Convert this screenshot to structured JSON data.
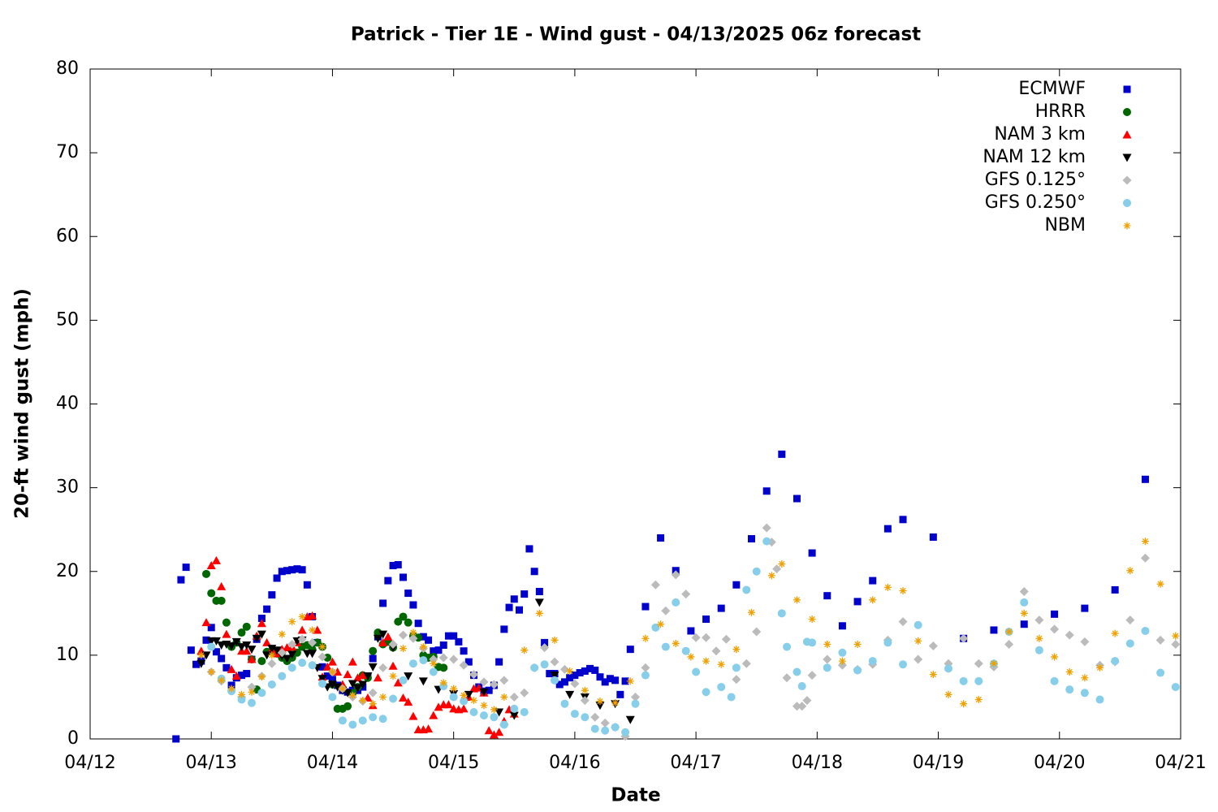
{
  "chart_data": {
    "type": "scatter",
    "title": "Patrick - Tier 1E - Wind gust - 04/13/2025 06z forecast",
    "x_label": "Date",
    "y_label": "20-ft wind gust (mph)",
    "xlim": [
      0,
      216
    ],
    "xticks": [
      {
        "value": 0,
        "label": "04/12"
      },
      {
        "value": 24,
        "label": "04/13"
      },
      {
        "value": 48,
        "label": "04/14"
      },
      {
        "value": 72,
        "label": "04/15"
      },
      {
        "value": 96,
        "label": "04/16"
      },
      {
        "value": 120,
        "label": "04/17"
      },
      {
        "value": 144,
        "label": "04/18"
      },
      {
        "value": 168,
        "label": "04/19"
      },
      {
        "value": 192,
        "label": "04/20"
      },
      {
        "value": 216,
        "label": "04/21"
      }
    ],
    "ylim": [
      0,
      80
    ],
    "yticks": [
      0,
      10,
      20,
      30,
      40,
      50,
      60,
      70,
      80
    ],
    "legend": "top-right",
    "series": [
      {
        "name": "ECMWF",
        "color": "#0000cc",
        "marker": "square",
        "x": [
          17,
          18,
          19,
          20,
          21,
          22,
          23,
          24,
          25,
          26,
          27,
          28,
          29,
          30,
          31,
          32,
          33,
          34,
          35,
          36,
          37,
          38,
          39,
          40,
          41,
          42,
          43,
          44,
          45,
          46,
          47,
          48,
          49,
          50,
          51,
          52,
          53,
          54,
          55,
          56,
          57,
          58,
          59,
          60,
          61,
          62,
          63,
          64,
          65,
          66,
          67,
          68,
          69,
          70,
          71,
          72,
          73,
          74,
          75,
          76,
          77,
          78,
          79,
          80,
          81,
          82,
          83,
          84,
          85,
          86,
          87,
          88,
          89,
          90,
          91,
          92,
          93,
          94,
          95,
          96,
          97,
          98,
          99,
          100,
          101,
          102,
          103,
          104,
          105,
          106,
          107,
          110,
          113,
          116,
          119,
          122,
          125,
          128,
          131,
          134,
          137,
          140,
          143,
          146,
          149,
          152,
          155,
          158,
          161,
          167,
          173,
          179,
          185,
          191,
          197,
          203,
          209
        ],
        "values": [
          0,
          19,
          20.5,
          10.6,
          8.9,
          9.3,
          11.8,
          13.3,
          10.4,
          9.6,
          8.5,
          6.4,
          7.3,
          7.6,
          7.8,
          9.5,
          11.9,
          14.4,
          15.5,
          17.2,
          19.2,
          20,
          20.1,
          20.2,
          20.3,
          20.2,
          18.4,
          14.6,
          11.5,
          8.6,
          7.5,
          7.1,
          6.4,
          5.8,
          5.6,
          5.8,
          5.8,
          6.2,
          7.5,
          9.6,
          12.2,
          16.2,
          18.9,
          20.7,
          20.8,
          19.3,
          17.4,
          16,
          13.8,
          12.2,
          11.8,
          10.5,
          10.6,
          11.2,
          12.3,
          12.3,
          11.6,
          10.5,
          9.2,
          7.6,
          6.2,
          5.7,
          5.8,
          6.4,
          9.2,
          13.1,
          15.7,
          16.7,
          15.4,
          17.3,
          22.7,
          20,
          17.6,
          11.5,
          7.8,
          7.8,
          6.5,
          6.8,
          7.3,
          7.6,
          7.9,
          8.1,
          8.4,
          8.2,
          7.4,
          6.8,
          7.2,
          7,
          5.3,
          6.9,
          10.7,
          15.8,
          24,
          20.1,
          12.9,
          14.3,
          15.6,
          18.4,
          23.9,
          29.6,
          34,
          28.7,
          22.2,
          17.1,
          13.5,
          16.4,
          18.9,
          25.1,
          26.2,
          24.1,
          12,
          13,
          13.7,
          14.9,
          15.6,
          17.8,
          31
        ]
      },
      {
        "name": "HRRR",
        "color": "#006600",
        "marker": "circle",
        "x": [
          23,
          24,
          25,
          26,
          27,
          28,
          29,
          30,
          31,
          32,
          33,
          34,
          35,
          36,
          37,
          38,
          39,
          40,
          41,
          42,
          43,
          44,
          45,
          46,
          47,
          48,
          49,
          50,
          51,
          52,
          53,
          54,
          55,
          56,
          57,
          58,
          59,
          60,
          61,
          62,
          63,
          64,
          65,
          66,
          67,
          68,
          69,
          70
        ],
        "values": [
          19.7,
          17.4,
          16.5,
          16.5,
          13.9,
          11,
          11.5,
          12.7,
          13.4,
          9.5,
          5.9,
          9.3,
          10.4,
          10.5,
          10.2,
          9.7,
          9.3,
          9.7,
          10.3,
          11,
          11.2,
          10.7,
          11.5,
          11,
          9.7,
          6.5,
          3.6,
          3.6,
          3.9,
          5.5,
          6.2,
          7.6,
          7.3,
          10.5,
          12.7,
          11.3,
          11.6,
          10.9,
          14,
          14.6,
          13.9,
          12.3,
          12.1,
          10,
          9.7,
          9.8,
          8.6,
          8.5
        ]
      },
      {
        "name": "NAM 3 km",
        "color": "#ff0000",
        "marker": "triangle",
        "x": [
          22,
          23,
          24,
          25,
          26,
          27,
          28,
          29,
          30,
          31,
          32,
          33,
          34,
          35,
          36,
          37,
          38,
          39,
          40,
          41,
          42,
          43,
          44,
          45,
          46,
          47,
          48,
          49,
          50,
          51,
          52,
          53,
          54,
          55,
          56,
          57,
          58,
          59,
          60,
          61,
          62,
          63,
          64,
          65,
          66,
          67,
          68,
          69,
          70,
          71,
          72,
          73,
          74,
          75,
          76,
          77,
          78,
          79,
          80,
          81,
          82,
          83,
          84
        ],
        "values": [
          10.5,
          13.9,
          20.7,
          21.3,
          18.2,
          12.5,
          8.3,
          7.5,
          10.5,
          10.5,
          9.5,
          12.3,
          13.8,
          11.5,
          10.7,
          10.2,
          10.7,
          10.9,
          11,
          11.5,
          13,
          14.6,
          14.7,
          13,
          7.4,
          8.6,
          9.2,
          8,
          6.5,
          7.7,
          9.2,
          7.3,
          7.6,
          4.9,
          4,
          7.3,
          11.5,
          12.2,
          8.7,
          6.7,
          4.9,
          4.4,
          2.7,
          1.1,
          1.1,
          1.2,
          2.8,
          3.8,
          4.1,
          4.1,
          3.6,
          3.5,
          3.6,
          5,
          6,
          6.1,
          5.5,
          1,
          0.5,
          0.8,
          2.1,
          3.5,
          3
        ]
      },
      {
        "name": "NAM 12 km",
        "color": "#000000",
        "marker": "down-triangle",
        "x": [
          22,
          23,
          24,
          25,
          26,
          27,
          28,
          29,
          30,
          31,
          32,
          33,
          34,
          35,
          36,
          37,
          38,
          39,
          40,
          41,
          42,
          43,
          44,
          45,
          46,
          47,
          48,
          49,
          50,
          51,
          52,
          53,
          54,
          55,
          56,
          57,
          58,
          60,
          63,
          66,
          69,
          72,
          75,
          78,
          81,
          84,
          89,
          92,
          95,
          98,
          101,
          104,
          107
        ],
        "values": [
          9,
          10,
          11.7,
          11.7,
          11.2,
          11.3,
          11.1,
          11.6,
          11,
          11.2,
          10.7,
          12,
          12.5,
          10,
          10.8,
          10.6,
          9.9,
          9.6,
          10.1,
          11.7,
          11.8,
          10.2,
          10.2,
          8.5,
          7.2,
          6.2,
          6.5,
          6.2,
          5.8,
          5.5,
          6.6,
          6.1,
          6.5,
          7.5,
          8.6,
          12,
          12.5,
          10.9,
          7.5,
          6.9,
          5.9,
          5.4,
          5.3,
          5.6,
          3.2,
          2.8,
          16.3,
          7.6,
          5.3,
          5,
          4,
          4.2,
          2.3
        ]
      },
      {
        "name": "GFS 0.125°",
        "color": "#bbbbbb",
        "marker": "diamond",
        "x": [
          24,
          26,
          28,
          30,
          32,
          34,
          36,
          38,
          40,
          42,
          44,
          46,
          48,
          50,
          52,
          54,
          56,
          58,
          60,
          62,
          64,
          66,
          68,
          70,
          72,
          74,
          76,
          78,
          80,
          82,
          84,
          86,
          88,
          90,
          92,
          94,
          96,
          98,
          100,
          102,
          104,
          106,
          108,
          110,
          112,
          114,
          116,
          118,
          120,
          122,
          124,
          126,
          128,
          130,
          132,
          134,
          135,
          136,
          138,
          140,
          141,
          142,
          143,
          146,
          149,
          152,
          155,
          158,
          161,
          164,
          167,
          170,
          173,
          176,
          179,
          182,
          185,
          188,
          191,
          194,
          197,
          200,
          203,
          206,
          209,
          212,
          215
        ],
        "values": [
          8,
          6.9,
          5.8,
          5,
          6.2,
          7.5,
          9,
          10.3,
          11.3,
          11.9,
          11.5,
          9.8,
          8,
          6,
          5,
          4.5,
          5.5,
          8.5,
          11.3,
          12.4,
          12,
          10.8,
          9.5,
          9.7,
          9.5,
          8.8,
          7.7,
          6.8,
          6.5,
          7,
          5,
          5.5,
          8.5,
          10.9,
          9.2,
          8.3,
          6.6,
          4.6,
          2.6,
          1.9,
          1.4,
          0.3,
          5,
          8.5,
          18.4,
          15.3,
          19.6,
          17.3,
          12.1,
          12.1,
          10.5,
          11.9,
          7.1,
          9,
          12.8,
          25.2,
          23.5,
          20.3,
          7.3,
          3.9,
          3.9,
          4.6,
          7.6,
          9.5,
          8.8,
          8.3,
          8.9,
          11.8,
          14,
          9.5,
          11.1,
          9,
          12,
          9,
          8.6,
          11.3,
          17.6,
          14.2,
          13.1,
          12.4,
          11.6,
          8.8,
          9.2,
          14.2,
          21.6,
          11.8,
          11.3
        ]
      },
      {
        "name": "GFS 0.250°",
        "color": "#87ceeb",
        "marker": "circle",
        "x": [
          24,
          26,
          28,
          30,
          32,
          34,
          36,
          38,
          40,
          42,
          44,
          46,
          48,
          50,
          52,
          54,
          56,
          58,
          60,
          62,
          64,
          66,
          68,
          70,
          72,
          74,
          76,
          78,
          80,
          82,
          84,
          86,
          88,
          90,
          92,
          94,
          96,
          98,
          100,
          102,
          104,
          106,
          108,
          110,
          112,
          114,
          116,
          118,
          120,
          122,
          125,
          127,
          128,
          130,
          132,
          134,
          137,
          138,
          140,
          141,
          142,
          143,
          146,
          149,
          152,
          155,
          158,
          161,
          164,
          170,
          173,
          176,
          179,
          182,
          185,
          188,
          191,
          194,
          197,
          200,
          203,
          206,
          209,
          212,
          215
        ],
        "values": [
          11,
          7.2,
          5.7,
          4.7,
          4.3,
          5.5,
          6.5,
          7.5,
          8.5,
          9.1,
          8.8,
          6.6,
          5,
          2.2,
          1.7,
          2.2,
          2.6,
          2.4,
          4.8,
          7,
          9,
          9.4,
          8,
          6.3,
          5,
          4.5,
          3.2,
          2.8,
          2.6,
          1.7,
          3.6,
          3.2,
          8.5,
          8.9,
          7,
          4.2,
          3,
          2.6,
          1.2,
          1,
          1.4,
          0.8,
          4.2,
          7.6,
          13.3,
          11,
          16.3,
          10.5,
          8,
          5.6,
          6.2,
          5,
          8.5,
          17.8,
          20,
          23.6,
          15,
          11,
          8,
          6.3,
          11.6,
          11.5,
          8.5,
          10.3,
          8.2,
          9.3,
          11.5,
          8.9,
          13.6,
          8.4,
          6.9,
          6.9,
          9,
          12.8,
          16.3,
          10.6,
          6.9,
          5.9,
          5.5,
          4.7,
          9.3,
          11.4,
          12.9,
          7.9,
          6.2
        ]
      },
      {
        "name": "NBM",
        "color": "#f0a000",
        "marker": "asterisk",
        "x": [
          22,
          24,
          26,
          28,
          30,
          32,
          34,
          36,
          38,
          40,
          42,
          44,
          46,
          48,
          50,
          52,
          54,
          56,
          58,
          60,
          62,
          64,
          66,
          68,
          70,
          72,
          74,
          76,
          78,
          80,
          82,
          86,
          89,
          92,
          95,
          98,
          101,
          104,
          107,
          110,
          113,
          116,
          119,
          122,
          125,
          128,
          131,
          135,
          137,
          140,
          143,
          146,
          149,
          152,
          155,
          158,
          161,
          164,
          167,
          170,
          173,
          176,
          179,
          182,
          185,
          188,
          191,
          194,
          197,
          200,
          203,
          206,
          209,
          212,
          215
        ],
        "values": [
          10,
          8,
          7,
          6,
          5.3,
          5.6,
          7.4,
          10,
          12.5,
          14,
          14.6,
          13,
          11,
          8,
          6,
          5.2,
          4.6,
          4.2,
          5,
          7.5,
          10.8,
          12.7,
          11,
          9,
          6.7,
          6,
          5.2,
          4.6,
          4,
          3.5,
          5,
          10.6,
          15,
          11.8,
          8.1,
          5.8,
          4.5,
          4.3,
          6.9,
          12,
          13.7,
          11.4,
          9.8,
          9.3,
          8.9,
          10.7,
          15.1,
          19.5,
          20.9,
          16.6,
          14.3,
          11.3,
          9.3,
          11.3,
          16.6,
          18.1,
          17.7,
          11.7,
          7.7,
          5.3,
          4.2,
          4.7,
          9,
          12.8,
          15,
          12,
          9.8,
          8,
          7.3,
          8.5,
          12.6,
          20.1,
          23.6,
          18.5,
          12.3
        ]
      }
    ]
  }
}
